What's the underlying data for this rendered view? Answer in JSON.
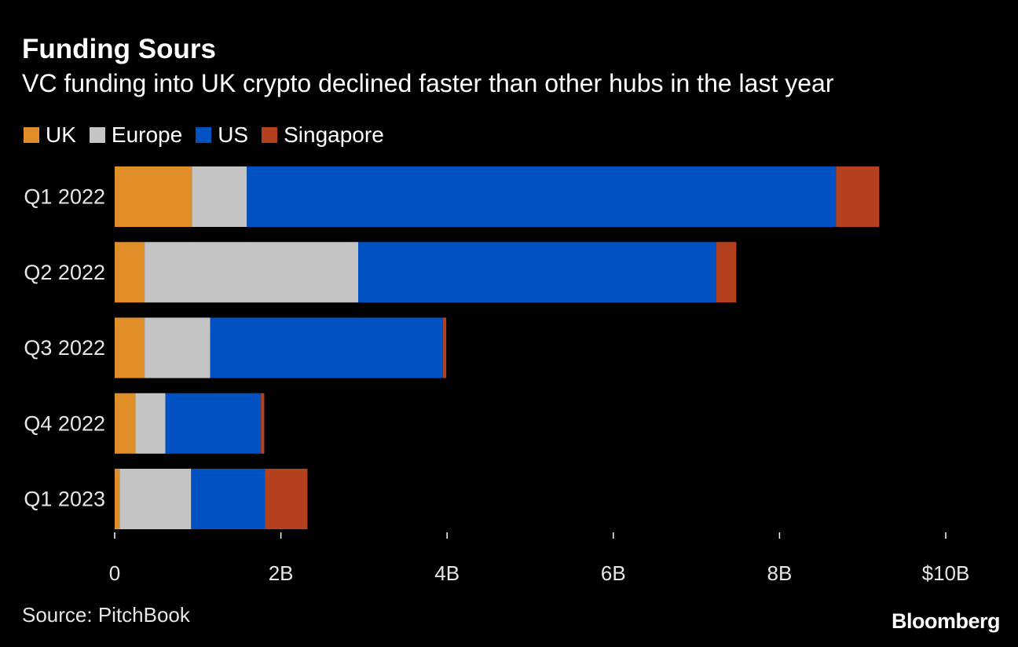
{
  "header": {
    "title": "Funding Sours",
    "subtitle": "VC funding into UK crypto declined faster than other hubs in the last year"
  },
  "legend": [
    {
      "label": "UK",
      "color": "#e08e28"
    },
    {
      "label": "Europe",
      "color": "#c4c4c4"
    },
    {
      "label": "US",
      "color": "#0052c2"
    },
    {
      "label": "Singapore",
      "color": "#b4411e"
    }
  ],
  "chart_data": {
    "type": "bar",
    "orientation": "horizontal",
    "stacked": true,
    "title": "Funding Sours",
    "subtitle": "VC funding into UK crypto declined faster than other hubs in the last year",
    "categories": [
      "Q1 2022",
      "Q2 2022",
      "Q3 2022",
      "Q4 2022",
      "Q1 2023"
    ],
    "series": [
      {
        "name": "UK",
        "color": "#e08e28",
        "values": [
          0.93,
          0.36,
          0.36,
          0.25,
          0.06
        ]
      },
      {
        "name": "Europe",
        "color": "#c4c4c4",
        "values": [
          0.66,
          2.57,
          0.79,
          0.36,
          0.86
        ]
      },
      {
        "name": "US",
        "color": "#0052c2",
        "values": [
          7.09,
          4.31,
          2.8,
          1.15,
          0.89
        ]
      },
      {
        "name": "Singapore",
        "color": "#b4411e",
        "values": [
          0.52,
          0.24,
          0.04,
          0.04,
          0.51
        ]
      }
    ],
    "xlim": [
      0,
      10
    ],
    "x_ticks": [
      {
        "value": 0,
        "label": "0"
      },
      {
        "value": 2,
        "label": "2B"
      },
      {
        "value": 4,
        "label": "4B"
      },
      {
        "value": 6,
        "label": "6B"
      },
      {
        "value": 8,
        "label": "8B"
      },
      {
        "value": 10,
        "label": "$10B"
      }
    ],
    "xlabel": "",
    "ylabel": "",
    "grid": false,
    "legend_position": "top-left"
  },
  "footer": {
    "source": "Source: PitchBook",
    "brand": "Bloomberg"
  }
}
